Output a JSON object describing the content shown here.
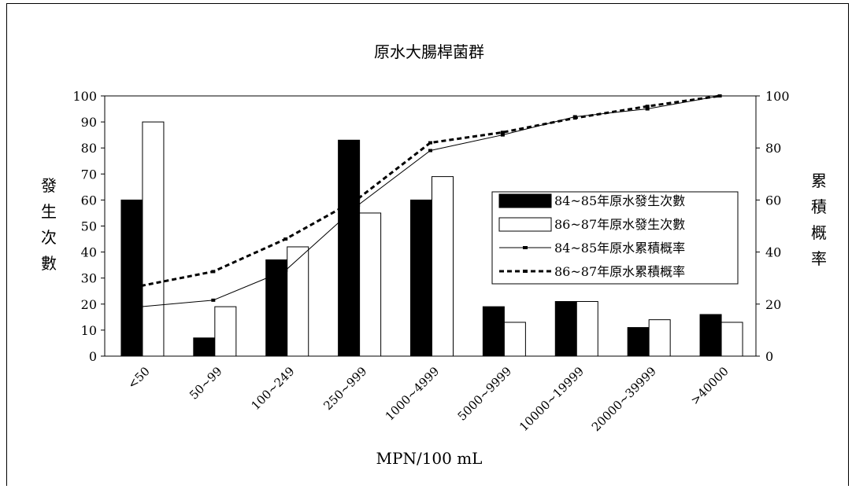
{
  "chart_data": {
    "type": "bar",
    "title": "原水大腸桿菌群",
    "xlabel": "MPN/100 mL",
    "ylabel": "發生次數",
    "y2label": "累積概率",
    "ylim": [
      0,
      100
    ],
    "y2lim": [
      0,
      100
    ],
    "yticks": [
      "0",
      "10",
      "20",
      "30",
      "40",
      "50",
      "60",
      "70",
      "80",
      "90",
      "100"
    ],
    "y2ticks": [
      "0",
      "20",
      "40",
      "60",
      "80",
      "100"
    ],
    "categories": [
      "<50",
      "50~99",
      "100~249",
      "250~999",
      "1000~4999",
      "5000~9999",
      "10000~19999",
      "20000~39999",
      ">40000"
    ],
    "series": [
      {
        "name": "84~85年原水發生次數",
        "kind": "bar",
        "fill": "#000000",
        "values": [
          60,
          7,
          37,
          83,
          60,
          19,
          21,
          11,
          16
        ]
      },
      {
        "name": "86~87年原水發生次數",
        "kind": "bar",
        "fill": "#ffffff",
        "values": [
          90,
          19,
          42,
          55,
          69,
          13,
          21,
          14,
          13
        ]
      },
      {
        "name": "84~85年原水累積概率",
        "kind": "line",
        "axis": "right",
        "style": "solid",
        "values": [
          19,
          21.5,
          33,
          58,
          79,
          85,
          92,
          95,
          100
        ]
      },
      {
        "name": "86~87年原水累積概率",
        "kind": "line",
        "axis": "right",
        "style": "dashed",
        "values": [
          27,
          32.5,
          45,
          60.5,
          82,
          86,
          91.5,
          96,
          100
        ]
      }
    ],
    "legend_position": "right",
    "grid": false
  }
}
